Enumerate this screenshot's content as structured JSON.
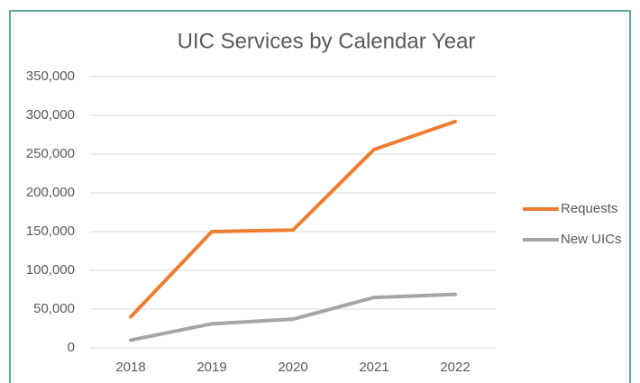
{
  "chart_data": {
    "type": "line",
    "title": "UIC Services by Calendar Year",
    "categories": [
      "2018",
      "2019",
      "2020",
      "2021",
      "2022"
    ],
    "series": [
      {
        "name": "Requests",
        "color": "#ed7d31",
        "values": [
          40000,
          150000,
          152000,
          256000,
          292000
        ]
      },
      {
        "name": "New UICs",
        "color": "#a5a5a5",
        "values": [
          10000,
          31000,
          37000,
          65000,
          69000
        ]
      }
    ],
    "ylim": [
      0,
      350000
    ],
    "yticks": [
      0,
      {
        "value": 50000,
        "label": "50,000"
      },
      {
        "value": 100000,
        "label": "100,000"
      },
      {
        "value": 150000,
        "label": "150,000"
      },
      {
        "value": 200000,
        "label": "200,000"
      },
      {
        "value": 250000,
        "label": "250,000"
      },
      {
        "value": 300000,
        "label": "300,000"
      },
      {
        "value": 350000,
        "label": "350,000"
      }
    ],
    "grid": true,
    "legend": "right"
  }
}
